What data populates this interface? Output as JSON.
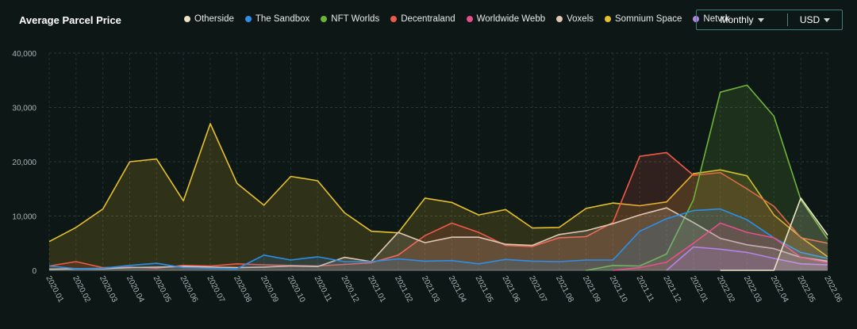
{
  "header": {
    "title": "Average Parcel Price",
    "period_label": "Monthly",
    "currency_label": "USD"
  },
  "chart_data": {
    "type": "area",
    "title": "Average Parcel Price",
    "xlabel": "",
    "ylabel": "",
    "ylim": [
      0,
      40000
    ],
    "y_ticks": [
      "0",
      "10,000",
      "20,000",
      "30,000",
      "40,000"
    ],
    "grid": true,
    "legend_position": "top",
    "categories": [
      "2020.01",
      "2020.02",
      "2020.03",
      "2020.04",
      "2020.05",
      "2020.06",
      "2020.07",
      "2020.08",
      "2020.09",
      "2020.10",
      "2020.11",
      "2020.12",
      "2021.01",
      "2021.02",
      "2021.03",
      "2021.04",
      "2021.05",
      "2021.06",
      "2021.07",
      "2021.08",
      "2021.09",
      "2021.10",
      "2021.11",
      "2021.12",
      "2022.01",
      "2022.02",
      "2022.03",
      "2022.04",
      "2022.05",
      "2022.06"
    ],
    "series": [
      {
        "name": "Otherside",
        "color": "#ece3c6",
        "values": [
          null,
          null,
          null,
          null,
          null,
          null,
          null,
          null,
          null,
          null,
          null,
          null,
          null,
          null,
          null,
          null,
          null,
          null,
          null,
          null,
          null,
          null,
          null,
          null,
          null,
          0,
          0,
          0,
          13300,
          6500
        ]
      },
      {
        "name": "The Sandbox",
        "color": "#2d8ee8",
        "values": [
          800,
          300,
          400,
          900,
          1300,
          500,
          400,
          300,
          2800,
          1900,
          2500,
          1600,
          1600,
          2100,
          1700,
          1800,
          1200,
          2000,
          1700,
          1600,
          1900,
          1900,
          7200,
          9500,
          11000,
          11300,
          9300,
          6000,
          3300,
          2200
        ]
      },
      {
        "name": "NFT Worlds",
        "color": "#6fb43a",
        "values": [
          null,
          null,
          null,
          null,
          null,
          null,
          null,
          null,
          null,
          null,
          null,
          null,
          null,
          null,
          null,
          null,
          null,
          null,
          null,
          null,
          0,
          900,
          800,
          3000,
          13000,
          32800,
          34100,
          28400,
          13000,
          5800
        ]
      },
      {
        "name": "Decentraland",
        "color": "#ef5a4a",
        "values": [
          800,
          1600,
          500,
          600,
          400,
          900,
          800,
          1200,
          1000,
          900,
          800,
          1100,
          1400,
          2800,
          6400,
          8700,
          7000,
          4600,
          4400,
          6000,
          6200,
          8800,
          21000,
          21700,
          17500,
          18000,
          15000,
          11800,
          6000,
          5000
        ]
      },
      {
        "name": "Worldwide Webb",
        "color": "#e64f8c",
        "values": [
          null,
          null,
          null,
          null,
          null,
          null,
          null,
          null,
          null,
          null,
          null,
          null,
          null,
          null,
          null,
          null,
          null,
          null,
          null,
          null,
          null,
          0,
          500,
          1500,
          5000,
          8700,
          7000,
          6000,
          2400,
          1400
        ]
      },
      {
        "name": "Voxels",
        "color": "#e0c7b2",
        "values": [
          200,
          300,
          300,
          500,
          600,
          700,
          600,
          500,
          600,
          800,
          700,
          2400,
          1600,
          7000,
          5100,
          6100,
          6100,
          4800,
          4600,
          6600,
          7300,
          8600,
          10200,
          11500,
          8800,
          5900,
          4700,
          4000,
          2400,
          1700
        ]
      },
      {
        "name": "Somnium Space",
        "color": "#e6c02c",
        "values": [
          5300,
          7900,
          11300,
          20000,
          20500,
          12800,
          27000,
          16000,
          12000,
          17300,
          16500,
          10600,
          7200,
          6900,
          13300,
          12500,
          10200,
          11200,
          7800,
          7900,
          11400,
          12400,
          11900,
          12600,
          17800,
          18500,
          17400,
          10200,
          6100,
          2500
        ]
      },
      {
        "name": "Netvrk",
        "color": "#b483e8",
        "values": [
          null,
          null,
          null,
          null,
          null,
          null,
          null,
          null,
          null,
          null,
          null,
          null,
          null,
          null,
          null,
          null,
          null,
          null,
          null,
          null,
          null,
          null,
          null,
          0,
          4300,
          3900,
          3300,
          2200,
          1200,
          1000
        ]
      }
    ]
  }
}
